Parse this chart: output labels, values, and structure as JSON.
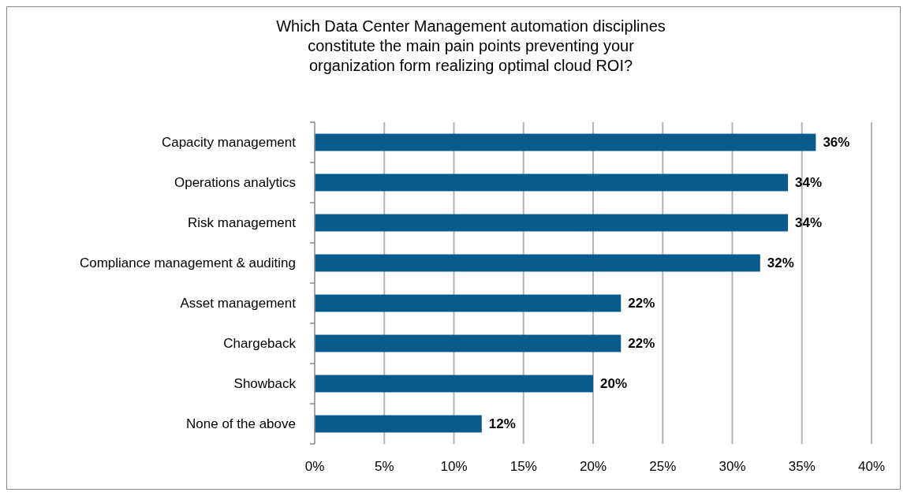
{
  "chart_data": {
    "type": "bar",
    "orientation": "horizontal",
    "title": "Which Data Center Management automation disciplines constitute the main pain points preventing your organization form realizing optimal cloud ROI?",
    "categories": [
      "Capacity management",
      "Operations analytics",
      "Risk management",
      "Compliance management & auditing",
      "Asset management",
      "Chargeback",
      "Showback",
      "None of the above"
    ],
    "values": [
      36,
      34,
      34,
      32,
      22,
      22,
      20,
      12
    ],
    "value_labels": [
      "36%",
      "34%",
      "34%",
      "32%",
      "22%",
      "22%",
      "20%",
      "12%"
    ],
    "color": "#0b5a8c",
    "xlim": [
      0,
      40
    ],
    "xticks": [
      {
        "value": 0,
        "label": "0%"
      },
      {
        "value": 5,
        "label": "5%"
      },
      {
        "value": 10,
        "label": "10%"
      },
      {
        "value": 15,
        "label": "15%"
      },
      {
        "value": 20,
        "label": "20%"
      },
      {
        "value": 25,
        "label": "25%"
      },
      {
        "value": 30,
        "label": "30%"
      },
      {
        "value": 35,
        "label": "35%"
      },
      {
        "value": 40,
        "label": "40%"
      }
    ],
    "grid": "x"
  }
}
